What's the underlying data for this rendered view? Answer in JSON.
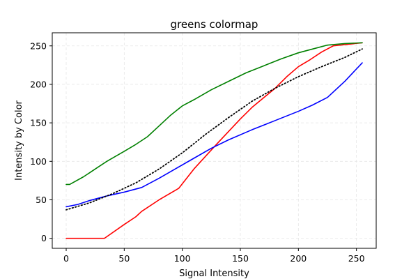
{
  "chart_data": {
    "type": "line",
    "title": "greens colormap",
    "xlabel": "Signal Intensity",
    "ylabel": "Intensity by Color",
    "xlim": [
      -12,
      267
    ],
    "ylim": [
      -13,
      267
    ],
    "xticks": [
      0,
      50,
      100,
      150,
      200,
      250
    ],
    "yticks": [
      0,
      50,
      100,
      150,
      200,
      250
    ],
    "grid": true,
    "series": [
      {
        "color": "#ff0000",
        "style": "solid",
        "points": [
          [
            0,
            0
          ],
          [
            33,
            0
          ],
          [
            50,
            18
          ],
          [
            60,
            28
          ],
          [
            65,
            35
          ],
          [
            80,
            50
          ],
          [
            97,
            65
          ],
          [
            110,
            90
          ],
          [
            130,
            123
          ],
          [
            150,
            155
          ],
          [
            160,
            170
          ],
          [
            180,
            195
          ],
          [
            190,
            210
          ],
          [
            200,
            223
          ],
          [
            210,
            232
          ],
          [
            220,
            242
          ],
          [
            230,
            250
          ],
          [
            255,
            254
          ]
        ]
      },
      {
        "color": "#008000",
        "style": "solid",
        "points": [
          [
            0,
            70
          ],
          [
            3,
            70
          ],
          [
            15,
            80
          ],
          [
            25,
            90
          ],
          [
            35,
            100
          ],
          [
            50,
            113
          ],
          [
            60,
            122
          ],
          [
            70,
            132
          ],
          [
            80,
            146
          ],
          [
            90,
            160
          ],
          [
            100,
            172
          ],
          [
            110,
            180
          ],
          [
            125,
            193
          ],
          [
            140,
            204
          ],
          [
            155,
            215
          ],
          [
            170,
            224
          ],
          [
            185,
            233
          ],
          [
            200,
            241
          ],
          [
            215,
            247
          ],
          [
            225,
            251
          ],
          [
            240,
            253
          ],
          [
            255,
            254
          ]
        ]
      },
      {
        "color": "#0000ff",
        "style": "solid",
        "points": [
          [
            0,
            41
          ],
          [
            10,
            44
          ],
          [
            20,
            49
          ],
          [
            35,
            55
          ],
          [
            50,
            60
          ],
          [
            65,
            66
          ],
          [
            80,
            78
          ],
          [
            95,
            91
          ],
          [
            110,
            104
          ],
          [
            125,
            117
          ],
          [
            140,
            128
          ],
          [
            160,
            141
          ],
          [
            180,
            153
          ],
          [
            200,
            165
          ],
          [
            212,
            173
          ],
          [
            225,
            183
          ],
          [
            240,
            204
          ],
          [
            255,
            228
          ]
        ]
      },
      {
        "color": "#000000",
        "style": "dotted",
        "points": [
          [
            0,
            37
          ],
          [
            20,
            46
          ],
          [
            40,
            58
          ],
          [
            60,
            72
          ],
          [
            80,
            90
          ],
          [
            100,
            111
          ],
          [
            120,
            135
          ],
          [
            140,
            157
          ],
          [
            160,
            178
          ],
          [
            180,
            195
          ],
          [
            200,
            210
          ],
          [
            220,
            223
          ],
          [
            240,
            235
          ],
          [
            255,
            246
          ]
        ]
      }
    ]
  }
}
